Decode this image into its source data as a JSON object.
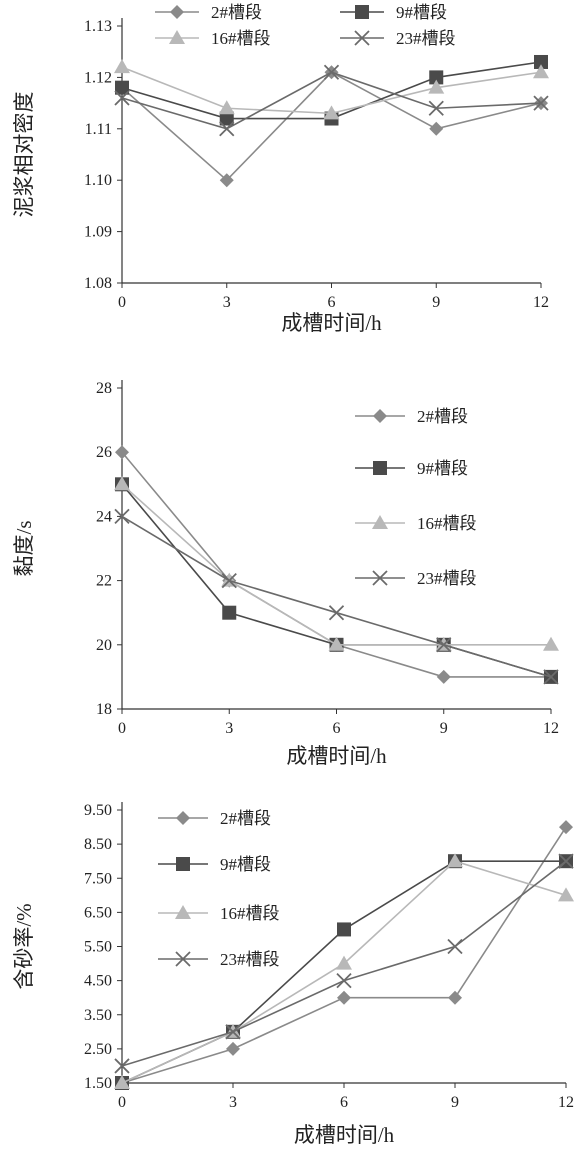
{
  "chart_data": [
    {
      "type": "line",
      "x": [
        0,
        3,
        6,
        9,
        12
      ],
      "xlabel": "成槽时间/h",
      "ylabel": "泥浆相对密度",
      "ylim": [
        1.08,
        1.13
      ],
      "yticks": [
        "1.08",
        "1.09",
        "1.10",
        "1.11",
        "1.12",
        "1.13"
      ],
      "xticks": [
        "0",
        "3",
        "6",
        "9",
        "12"
      ],
      "legend_position": "top",
      "grid": false,
      "series": [
        {
          "name": "2#槽段",
          "marker": "diamond",
          "color": "#8a8a8a",
          "values": [
            1.118,
            1.1,
            1.121,
            1.11,
            1.115
          ]
        },
        {
          "name": "9#槽段",
          "marker": "square",
          "color": "#4a4a4a",
          "values": [
            1.118,
            1.112,
            1.112,
            1.12,
            1.123
          ]
        },
        {
          "name": "16#槽段",
          "marker": "triangle",
          "color": "#b8b8b8",
          "values": [
            1.122,
            1.114,
            1.113,
            1.118,
            1.121
          ]
        },
        {
          "name": "23#槽段",
          "marker": "x",
          "color": "#6a6a6a",
          "values": [
            1.116,
            1.11,
            1.121,
            1.114,
            1.115
          ]
        }
      ]
    },
    {
      "type": "line",
      "x": [
        0,
        3,
        6,
        9,
        12
      ],
      "xlabel": "成槽时间/h",
      "ylabel": "黏度/s",
      "ylim": [
        18,
        28
      ],
      "yticks": [
        "18",
        "20",
        "22",
        "24",
        "26",
        "28"
      ],
      "xticks": [
        "0",
        "3",
        "6",
        "9",
        "12"
      ],
      "legend_position": "right",
      "grid": false,
      "series": [
        {
          "name": "2#槽段",
          "marker": "diamond",
          "color": "#8a8a8a",
          "values": [
            26,
            22,
            20,
            19,
            19
          ]
        },
        {
          "name": "9#槽段",
          "marker": "square",
          "color": "#4a4a4a",
          "values": [
            25,
            21,
            20,
            20,
            19
          ]
        },
        {
          "name": "16#槽段",
          "marker": "triangle",
          "color": "#b8b8b8",
          "values": [
            25,
            22,
            20,
            20,
            20
          ]
        },
        {
          "name": "23#槽段",
          "marker": "x",
          "color": "#6a6a6a",
          "values": [
            24,
            22,
            21,
            20,
            19
          ]
        }
      ]
    },
    {
      "type": "line",
      "x": [
        0,
        3,
        6,
        9,
        12
      ],
      "xlabel": "成槽时间/h",
      "ylabel": "含砂率/%",
      "ylim": [
        1.5,
        9.5
      ],
      "yticks": [
        "1.50",
        "2.50",
        "3.50",
        "4.50",
        "5.50",
        "6.50",
        "7.50",
        "8.50",
        "9.50"
      ],
      "xticks": [
        "0",
        "3",
        "6",
        "9",
        "12"
      ],
      "legend_position": "top-left",
      "grid": false,
      "series": [
        {
          "name": "2#槽段",
          "marker": "diamond",
          "color": "#8a8a8a",
          "values": [
            1.5,
            2.5,
            4.0,
            4.0,
            9.0
          ]
        },
        {
          "name": "9#槽段",
          "marker": "square",
          "color": "#4a4a4a",
          "values": [
            1.5,
            3.0,
            6.0,
            8.0,
            8.0
          ]
        },
        {
          "name": "16#槽段",
          "marker": "triangle",
          "color": "#b8b8b8",
          "values": [
            1.5,
            3.0,
            5.0,
            8.0,
            7.0
          ]
        },
        {
          "name": "23#槽段",
          "marker": "x",
          "color": "#6a6a6a",
          "values": [
            2.0,
            3.0,
            4.5,
            5.5,
            8.0
          ]
        }
      ]
    }
  ]
}
